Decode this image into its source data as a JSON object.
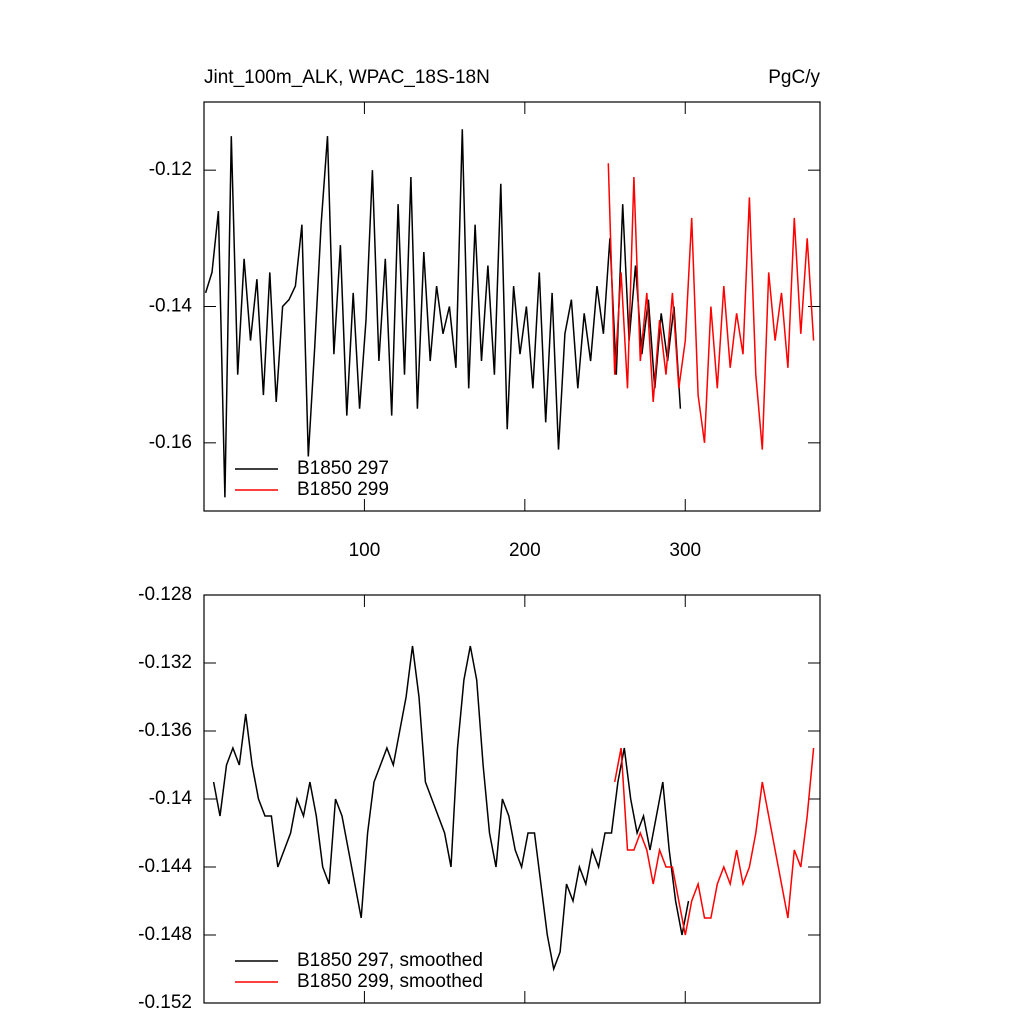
{
  "chart_data": [
    {
      "type": "line",
      "title": "Jint_100m_ALK, WPAC_18S-18N",
      "units": "PgC/y",
      "xlim": [
        0,
        384
      ],
      "xticks": [
        100,
        200,
        300
      ],
      "ylim": [
        -0.17,
        -0.11
      ],
      "yticks": [
        -0.12,
        -0.14,
        -0.16
      ],
      "legend": "lower left",
      "series": [
        {
          "name": "B1850 297",
          "color": "#000000",
          "x": [
            1,
            5,
            9,
            13,
            17,
            21,
            25,
            29,
            33,
            37,
            41,
            45,
            49,
            53,
            57,
            61,
            65,
            69,
            73,
            77,
            81,
            85,
            89,
            93,
            97,
            101,
            105,
            109,
            113,
            117,
            121,
            125,
            129,
            133,
            137,
            141,
            145,
            149,
            153,
            157,
            161,
            165,
            169,
            173,
            177,
            181,
            185,
            189,
            193,
            197,
            201,
            205,
            209,
            213,
            217,
            221,
            225,
            229,
            233,
            237,
            241,
            245,
            249,
            253,
            257,
            261,
            265,
            269,
            273,
            277,
            281,
            285,
            289,
            293,
            297
          ],
          "values": [
            -0.138,
            -0.135,
            -0.126,
            -0.168,
            -0.115,
            -0.15,
            -0.133,
            -0.145,
            -0.136,
            -0.153,
            -0.135,
            -0.154,
            -0.14,
            -0.139,
            -0.137,
            -0.128,
            -0.162,
            -0.146,
            -0.128,
            -0.115,
            -0.147,
            -0.131,
            -0.156,
            -0.138,
            -0.155,
            -0.142,
            -0.12,
            -0.148,
            -0.133,
            -0.156,
            -0.125,
            -0.15,
            -0.121,
            -0.155,
            -0.132,
            -0.148,
            -0.137,
            -0.144,
            -0.14,
            -0.149,
            -0.114,
            -0.152,
            -0.128,
            -0.148,
            -0.134,
            -0.15,
            -0.122,
            -0.158,
            -0.137,
            -0.147,
            -0.14,
            -0.152,
            -0.135,
            -0.157,
            -0.138,
            -0.161,
            -0.144,
            -0.139,
            -0.152,
            -0.141,
            -0.148,
            -0.137,
            -0.144,
            -0.13,
            -0.15,
            -0.125,
            -0.145,
            -0.134,
            -0.147,
            -0.139,
            -0.152,
            -0.141,
            -0.148,
            -0.14,
            -0.155
          ]
        },
        {
          "name": "B1850 299",
          "color": "#ff0000",
          "x": [
            252,
            256,
            260,
            264,
            268,
            272,
            276,
            280,
            284,
            288,
            292,
            296,
            300,
            304,
            308,
            312,
            316,
            320,
            324,
            328,
            332,
            336,
            340,
            344,
            348,
            352,
            356,
            360,
            364,
            368,
            372,
            376,
            380
          ],
          "values": [
            -0.119,
            -0.15,
            -0.135,
            -0.152,
            -0.121,
            -0.148,
            -0.138,
            -0.154,
            -0.142,
            -0.15,
            -0.138,
            -0.152,
            -0.145,
            -0.127,
            -0.153,
            -0.16,
            -0.14,
            -0.152,
            -0.137,
            -0.149,
            -0.141,
            -0.147,
            -0.124,
            -0.15,
            -0.161,
            -0.135,
            -0.145,
            -0.138,
            -0.149,
            -0.127,
            -0.144,
            -0.13,
            -0.145
          ]
        }
      ]
    },
    {
      "type": "line",
      "xlim": [
        0,
        384
      ],
      "ylim": [
        -0.152,
        -0.128
      ],
      "yticks": [
        -0.128,
        -0.132,
        -0.136,
        -0.14,
        -0.144,
        -0.148,
        -0.152
      ],
      "legend": "lower left",
      "series": [
        {
          "name": "B1850 297, smoothed",
          "color": "#000000",
          "x": [
            6,
            10,
            14,
            18,
            22,
            26,
            30,
            34,
            38,
            42,
            46,
            50,
            54,
            58,
            62,
            66,
            70,
            74,
            78,
            82,
            86,
            90,
            94,
            98,
            102,
            106,
            110,
            114,
            118,
            122,
            126,
            130,
            134,
            138,
            142,
            146,
            150,
            154,
            158,
            162,
            166,
            170,
            174,
            178,
            182,
            186,
            190,
            194,
            198,
            202,
            206,
            210,
            214,
            218,
            222,
            226,
            230,
            234,
            238,
            242,
            246,
            250,
            254,
            258,
            262,
            266,
            270,
            274,
            278,
            282,
            286,
            290,
            294,
            298,
            302
          ],
          "values": [
            -0.139,
            -0.141,
            -0.138,
            -0.137,
            -0.138,
            -0.135,
            -0.138,
            -0.14,
            -0.141,
            -0.141,
            -0.144,
            -0.143,
            -0.142,
            -0.14,
            -0.141,
            -0.139,
            -0.141,
            -0.144,
            -0.145,
            -0.14,
            -0.141,
            -0.143,
            -0.145,
            -0.147,
            -0.142,
            -0.139,
            -0.138,
            -0.137,
            -0.138,
            -0.136,
            -0.134,
            -0.131,
            -0.134,
            -0.139,
            -0.14,
            -0.141,
            -0.142,
            -0.144,
            -0.137,
            -0.133,
            -0.131,
            -0.133,
            -0.138,
            -0.142,
            -0.144,
            -0.14,
            -0.141,
            -0.143,
            -0.144,
            -0.142,
            -0.142,
            -0.145,
            -0.148,
            -0.15,
            -0.149,
            -0.145,
            -0.146,
            -0.144,
            -0.145,
            -0.143,
            -0.144,
            -0.142,
            -0.142,
            -0.139,
            -0.137,
            -0.14,
            -0.142,
            -0.141,
            -0.143,
            -0.141,
            -0.139,
            -0.143,
            -0.146,
            -0.148,
            -0.146
          ]
        },
        {
          "name": "B1850 299, smoothed",
          "color": "#ff0000",
          "x": [
            256,
            260,
            264,
            268,
            272,
            276,
            280,
            284,
            288,
            292,
            296,
            300,
            304,
            308,
            312,
            316,
            320,
            324,
            328,
            332,
            336,
            340,
            344,
            348,
            352,
            356,
            360,
            364,
            368,
            372,
            376,
            380
          ],
          "values": [
            -0.139,
            -0.137,
            -0.143,
            -0.143,
            -0.142,
            -0.143,
            -0.145,
            -0.143,
            -0.144,
            -0.144,
            -0.146,
            -0.148,
            -0.146,
            -0.145,
            -0.147,
            -0.147,
            -0.145,
            -0.144,
            -0.145,
            -0.143,
            -0.145,
            -0.144,
            -0.142,
            -0.139,
            -0.141,
            -0.143,
            -0.145,
            -0.147,
            -0.143,
            -0.144,
            -0.141,
            -0.137
          ]
        }
      ]
    }
  ]
}
